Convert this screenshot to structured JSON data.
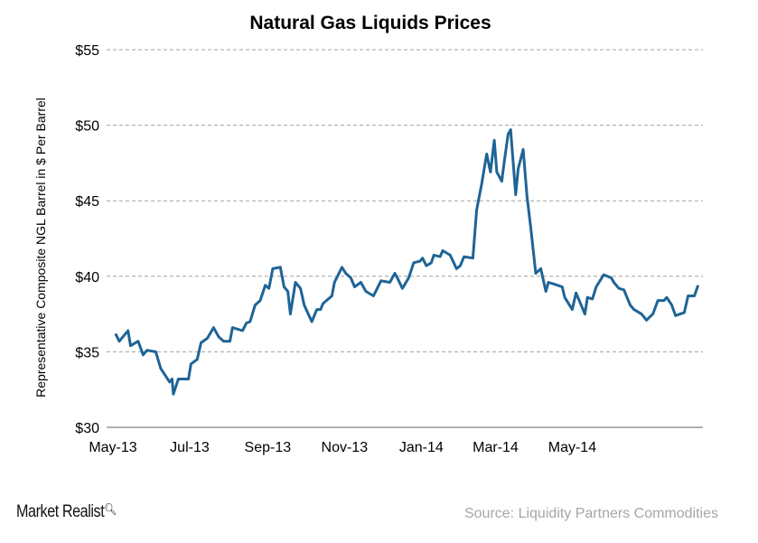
{
  "chart_data": {
    "type": "line",
    "title": "Natural Gas Liquids Prices",
    "xlabel": "",
    "ylabel": "Representative Composite NGL Barrel in $ Per Barrel",
    "ylim": [
      30,
      55
    ],
    "yticks": [
      30,
      35,
      40,
      45,
      50,
      55
    ],
    "ytick_labels": [
      "$30",
      "$35",
      "$40",
      "$45",
      "$50",
      "$55"
    ],
    "xticks": [
      {
        "date": "2013-05-01",
        "label": "May-13"
      },
      {
        "date": "2013-07-01",
        "label": "Jul-13"
      },
      {
        "date": "2013-09-01",
        "label": "Sep-13"
      },
      {
        "date": "2013-11-01",
        "label": "Nov-13"
      },
      {
        "date": "2014-01-01",
        "label": "Jan-14"
      },
      {
        "date": "2014-03-01",
        "label": "Mar-14"
      },
      {
        "date": "2014-05-01",
        "label": "May-14"
      }
    ],
    "grid": "horizontal dashed",
    "line_color": "#1f6496",
    "series": [
      {
        "points": [
          [
            "2013-05-03",
            36.2
          ],
          [
            "2013-05-06",
            35.7
          ],
          [
            "2013-05-13",
            36.4
          ],
          [
            "2013-05-15",
            35.4
          ],
          [
            "2013-05-21",
            35.7
          ],
          [
            "2013-05-25",
            34.8
          ],
          [
            "2013-05-28",
            35.1
          ],
          [
            "2013-06-04",
            35.0
          ],
          [
            "2013-06-08",
            33.9
          ],
          [
            "2013-06-15",
            33.0
          ],
          [
            "2013-06-17",
            33.2
          ],
          [
            "2013-06-18",
            32.2
          ],
          [
            "2013-06-22",
            33.2
          ],
          [
            "2013-06-30",
            33.2
          ],
          [
            "2013-07-02",
            34.2
          ],
          [
            "2013-07-07",
            34.5
          ],
          [
            "2013-07-10",
            35.6
          ],
          [
            "2013-07-15",
            35.9
          ],
          [
            "2013-07-20",
            36.6
          ],
          [
            "2013-07-24",
            36.0
          ],
          [
            "2013-07-28",
            35.7
          ],
          [
            "2013-08-02",
            35.7
          ],
          [
            "2013-08-04",
            36.6
          ],
          [
            "2013-08-12",
            36.4
          ],
          [
            "2013-08-15",
            36.9
          ],
          [
            "2013-08-18",
            37.0
          ],
          [
            "2013-08-22",
            38.1
          ],
          [
            "2013-08-26",
            38.4
          ],
          [
            "2013-08-30",
            39.4
          ],
          [
            "2013-09-02",
            39.2
          ],
          [
            "2013-09-05",
            40.5
          ],
          [
            "2013-09-11",
            40.6
          ],
          [
            "2013-09-14",
            39.3
          ],
          [
            "2013-09-17",
            39.0
          ],
          [
            "2013-09-19",
            37.5
          ],
          [
            "2013-09-23",
            39.6
          ],
          [
            "2013-09-27",
            39.2
          ],
          [
            "2013-09-30",
            38.1
          ],
          [
            "2013-10-06",
            37.0
          ],
          [
            "2013-10-10",
            37.8
          ],
          [
            "2013-10-13",
            37.8
          ],
          [
            "2013-10-15",
            38.2
          ],
          [
            "2013-10-22",
            38.7
          ],
          [
            "2013-10-24",
            39.6
          ],
          [
            "2013-10-30",
            40.6
          ],
          [
            "2013-11-02",
            40.2
          ],
          [
            "2013-11-06",
            39.9
          ],
          [
            "2013-11-09",
            39.3
          ],
          [
            "2013-11-14",
            39.6
          ],
          [
            "2013-11-18",
            39.0
          ],
          [
            "2013-11-24",
            38.7
          ],
          [
            "2013-11-30",
            39.7
          ],
          [
            "2013-12-07",
            39.6
          ],
          [
            "2013-12-11",
            40.2
          ],
          [
            "2013-12-13",
            39.9
          ],
          [
            "2013-12-17",
            39.2
          ],
          [
            "2013-12-22",
            39.9
          ],
          [
            "2013-12-26",
            40.9
          ],
          [
            "2013-12-31",
            41.0
          ],
          [
            "2014-01-02",
            41.2
          ],
          [
            "2014-01-05",
            40.7
          ],
          [
            "2014-01-09",
            40.9
          ],
          [
            "2014-01-11",
            41.4
          ],
          [
            "2014-01-16",
            41.3
          ],
          [
            "2014-01-18",
            41.7
          ],
          [
            "2014-01-24",
            41.4
          ],
          [
            "2014-01-29",
            40.5
          ],
          [
            "2014-02-01",
            40.7
          ],
          [
            "2014-02-04",
            41.3
          ],
          [
            "2014-02-11",
            41.2
          ],
          [
            "2014-02-14",
            44.4
          ],
          [
            "2014-02-18",
            46.1
          ],
          [
            "2014-02-22",
            48.1
          ],
          [
            "2014-02-25",
            46.9
          ],
          [
            "2014-02-28",
            49.0
          ],
          [
            "2014-03-02",
            46.9
          ],
          [
            "2014-03-06",
            46.3
          ],
          [
            "2014-03-08",
            47.6
          ],
          [
            "2014-03-11",
            49.4
          ],
          [
            "2014-03-13",
            49.7
          ],
          [
            "2014-03-17",
            45.4
          ],
          [
            "2014-03-19",
            47.1
          ],
          [
            "2014-03-23",
            48.4
          ],
          [
            "2014-03-26",
            45.3
          ],
          [
            "2014-03-29",
            43.2
          ],
          [
            "2014-04-02",
            40.2
          ],
          [
            "2014-04-06",
            40.5
          ],
          [
            "2014-04-10",
            39.0
          ],
          [
            "2014-04-12",
            39.6
          ],
          [
            "2014-04-16",
            39.5
          ],
          [
            "2014-04-23",
            39.3
          ],
          [
            "2014-04-25",
            38.6
          ],
          [
            "2014-05-01",
            37.8
          ],
          [
            "2014-05-04",
            38.9
          ],
          [
            "2014-05-11",
            37.5
          ],
          [
            "2014-05-13",
            38.6
          ],
          [
            "2014-05-17",
            38.5
          ],
          [
            "2014-05-20",
            39.3
          ],
          [
            "2014-05-26",
            40.1
          ],
          [
            "2014-06-01",
            39.9
          ],
          [
            "2014-06-03",
            39.6
          ],
          [
            "2014-06-07",
            39.2
          ],
          [
            "2014-06-11",
            39.1
          ],
          [
            "2014-06-16",
            38.1
          ],
          [
            "2014-06-19",
            37.8
          ],
          [
            "2014-06-25",
            37.5
          ],
          [
            "2014-06-29",
            37.1
          ],
          [
            "2014-07-04",
            37.5
          ],
          [
            "2014-07-08",
            38.4
          ],
          [
            "2014-07-13",
            38.4
          ],
          [
            "2014-07-15",
            38.6
          ],
          [
            "2014-07-19",
            38.1
          ],
          [
            "2014-07-22",
            37.4
          ],
          [
            "2014-07-29",
            37.6
          ],
          [
            "2014-08-01",
            38.7
          ],
          [
            "2014-08-06",
            38.7
          ],
          [
            "2014-08-09",
            39.4
          ]
        ]
      }
    ]
  },
  "footer": {
    "brand": "Market Realist",
    "source": "Source: Liquidity Partners Commodities"
  }
}
